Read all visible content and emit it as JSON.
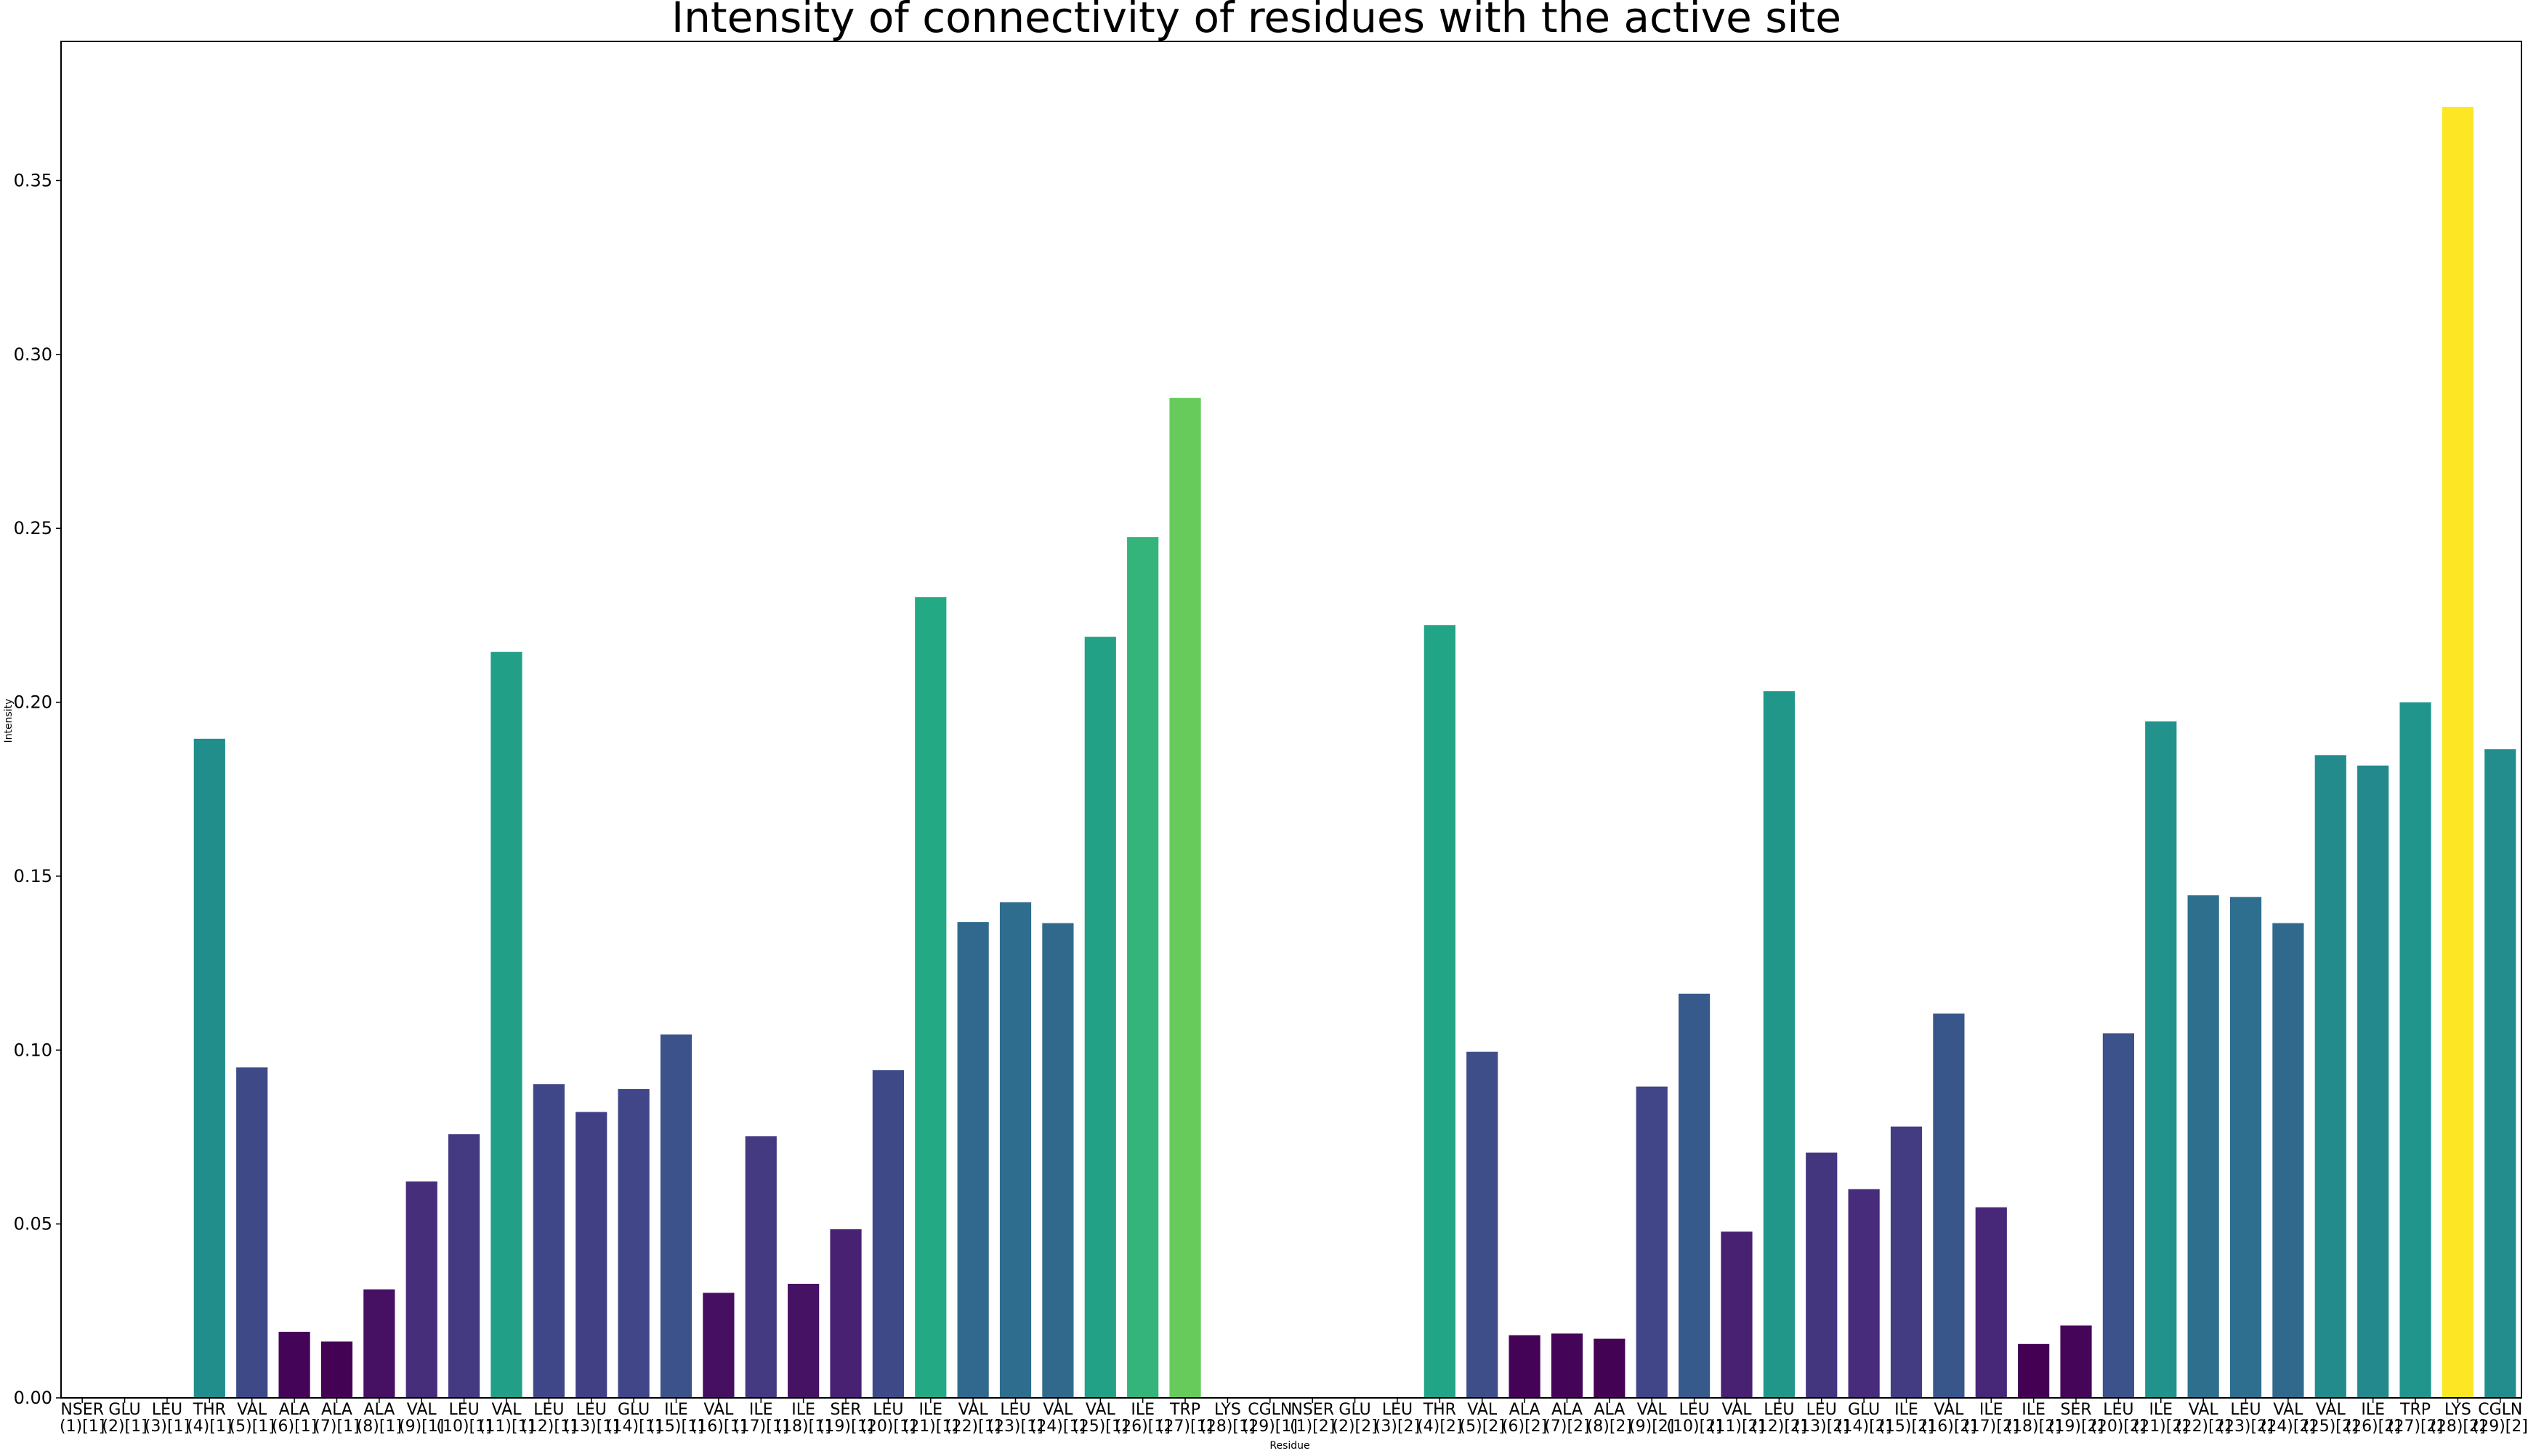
{
  "chart_data": {
    "type": "bar",
    "title": "Intensity of connectivity of residues with the active site",
    "xlabel": "Residue",
    "ylabel": "Intensity",
    "ylim": [
      0,
      0.39
    ],
    "yticks": [
      "0.00",
      "0.05",
      "0.10",
      "0.15",
      "0.20",
      "0.25",
      "0.30",
      "0.35"
    ],
    "ytick_values": [
      0,
      0.05,
      0.1,
      0.15,
      0.2,
      0.25,
      0.3,
      0.35
    ],
    "grid": false,
    "legend": "none",
    "colormap": "viridis",
    "categories": [
      {
        "line1": "NSER",
        "line2": "(1)[1]"
      },
      {
        "line1": "GLU",
        "line2": "(2)[1]"
      },
      {
        "line1": "LEU",
        "line2": "(3)[1]"
      },
      {
        "line1": "THR",
        "line2": "(4)[1]"
      },
      {
        "line1": "VAL",
        "line2": "(5)[1]"
      },
      {
        "line1": "ALA",
        "line2": "(6)[1]"
      },
      {
        "line1": "ALA",
        "line2": "(7)[1]"
      },
      {
        "line1": "ALA",
        "line2": "(8)[1]"
      },
      {
        "line1": "VAL",
        "line2": "(9)[1]"
      },
      {
        "line1": "LEU",
        "line2": "(10)[1]"
      },
      {
        "line1": "VAL",
        "line2": "(11)[1]"
      },
      {
        "line1": "LEU",
        "line2": "(12)[1]"
      },
      {
        "line1": "LEU",
        "line2": "(13)[1]"
      },
      {
        "line1": "GLU",
        "line2": "(14)[1]"
      },
      {
        "line1": "ILE",
        "line2": "(15)[1]"
      },
      {
        "line1": "VAL",
        "line2": "(16)[1]"
      },
      {
        "line1": "ILE",
        "line2": "(17)[1]"
      },
      {
        "line1": "ILE",
        "line2": "(18)[1]"
      },
      {
        "line1": "SER",
        "line2": "(19)[1]"
      },
      {
        "line1": "LEU",
        "line2": "(20)[1]"
      },
      {
        "line1": "ILE",
        "line2": "(21)[1]"
      },
      {
        "line1": "VAL",
        "line2": "(22)[1]"
      },
      {
        "line1": "LEU",
        "line2": "(23)[1]"
      },
      {
        "line1": "VAL",
        "line2": "(24)[1]"
      },
      {
        "line1": "VAL",
        "line2": "(25)[1]"
      },
      {
        "line1": "ILE",
        "line2": "(26)[1]"
      },
      {
        "line1": "TRP",
        "line2": "(27)[1]"
      },
      {
        "line1": "LYS",
        "line2": "(28)[1]"
      },
      {
        "line1": "CGLN",
        "line2": "(29)[1]"
      },
      {
        "line1": "NSER",
        "line2": "(1)[2]"
      },
      {
        "line1": "GLU",
        "line2": "(2)[2]"
      },
      {
        "line1": "LEU",
        "line2": "(3)[2]"
      },
      {
        "line1": "THR",
        "line2": "(4)[2]"
      },
      {
        "line1": "VAL",
        "line2": "(5)[2]"
      },
      {
        "line1": "ALA",
        "line2": "(6)[2]"
      },
      {
        "line1": "ALA",
        "line2": "(7)[2]"
      },
      {
        "line1": "ALA",
        "line2": "(8)[2]"
      },
      {
        "line1": "VAL",
        "line2": "(9)[2]"
      },
      {
        "line1": "LEU",
        "line2": "(10)[2]"
      },
      {
        "line1": "VAL",
        "line2": "(11)[2]"
      },
      {
        "line1": "LEU",
        "line2": "(12)[2]"
      },
      {
        "line1": "LEU",
        "line2": "(13)[2]"
      },
      {
        "line1": "GLU",
        "line2": "(14)[2]"
      },
      {
        "line1": "ILE",
        "line2": "(15)[2]"
      },
      {
        "line1": "VAL",
        "line2": "(16)[2]"
      },
      {
        "line1": "ILE",
        "line2": "(17)[2]"
      },
      {
        "line1": "ILE",
        "line2": "(18)[2]"
      },
      {
        "line1": "SER",
        "line2": "(19)[2]"
      },
      {
        "line1": "LEU",
        "line2": "(20)[2]"
      },
      {
        "line1": "ILE",
        "line2": "(21)[2]"
      },
      {
        "line1": "VAL",
        "line2": "(22)[2]"
      },
      {
        "line1": "LEU",
        "line2": "(23)[2]"
      },
      {
        "line1": "VAL",
        "line2": "(24)[2]"
      },
      {
        "line1": "VAL",
        "line2": "(25)[2]"
      },
      {
        "line1": "ILE",
        "line2": "(26)[2]"
      },
      {
        "line1": "TRP",
        "line2": "(27)[2]"
      },
      {
        "line1": "LYS",
        "line2": "(28)[2]"
      },
      {
        "line1": "CGLN",
        "line2": "(29)[2]"
      }
    ],
    "values": [
      0,
      0,
      0,
      0.1895,
      0.095,
      0.019,
      0.0162,
      0.0312,
      0.0622,
      0.0758,
      0.2145,
      0.0902,
      0.0822,
      0.0888,
      0.1045,
      0.0302,
      0.0752,
      0.0328,
      0.0485,
      0.0942,
      0.2302,
      0.1368,
      0.1425,
      0.1365,
      0.2188,
      0.2475,
      0.2875,
      0,
      0,
      0,
      0,
      0,
      0.2222,
      0.0995,
      0.018,
      0.0185,
      0.017,
      0.0895,
      0.1162,
      0.0478,
      0.2032,
      0.0705,
      0.06,
      0.078,
      0.1105,
      0.0548,
      0.0155,
      0.0208,
      0.1048,
      0.1945,
      0.1445,
      0.144,
      0.1365,
      0.1848,
      0.1818,
      0.2,
      0.3712,
      0.1865
    ]
  }
}
